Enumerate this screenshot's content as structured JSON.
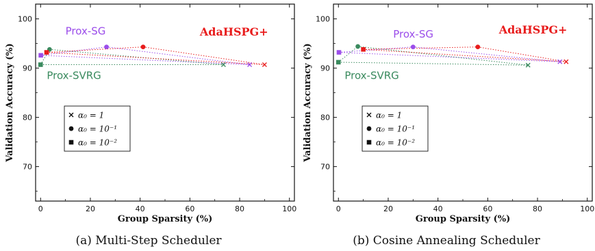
{
  "colors": {
    "Prox-SG": "#9b4dea",
    "Prox-SVRG": "#3a8a5e",
    "AdaHSPG+": "#e81c1c",
    "text": "#111111"
  },
  "chart_data": [
    {
      "type": "scatter",
      "caption": "(a) Multi-Step Scheduler",
      "xlabel": "Group Sparsity (%)",
      "ylabel": "Validation Accuracy (%)",
      "xlim": [
        -2,
        102
      ],
      "ylim": [
        63,
        103
      ],
      "xticks": [
        0,
        20,
        40,
        60,
        80,
        100
      ],
      "yticks": [
        70,
        80,
        90,
        100
      ],
      "grid": false,
      "legend_position": "lower-left",
      "legend": [
        {
          "marker": "x",
          "label": "α₀ = 1"
        },
        {
          "marker": "circle",
          "label": "α₀ = 10⁻¹"
        },
        {
          "marker": "square",
          "label": "α₀ = 10⁻²"
        }
      ],
      "series": [
        {
          "name": "Prox-SG",
          "label_text": "Prox-SG",
          "label_anchor": [
            10,
            96.8
          ],
          "label_weight": "normal",
          "label_font": "sans",
          "points": [
            {
              "x": 0.1,
              "y": 92.6,
              "m": "square"
            },
            {
              "x": 26.5,
              "y": 94.3,
              "m": "circle"
            },
            {
              "x": 84.0,
              "y": 90.7,
              "m": "x"
            }
          ]
        },
        {
          "name": "Prox-SVRG",
          "label_text": "Prox-SVRG",
          "label_anchor": [
            2.5,
            87.8
          ],
          "label_weight": "normal",
          "label_font": "sans",
          "points": [
            {
              "x": 0.0,
              "y": 90.7,
              "m": "square"
            },
            {
              "x": 3.6,
              "y": 93.8,
              "m": "circle"
            },
            {
              "x": 73.5,
              "y": 90.7,
              "m": "x"
            }
          ]
        },
        {
          "name": "AdaHSPG+",
          "label_text": "AdaHSPG+",
          "label_anchor": [
            64,
            96.6
          ],
          "label_weight": "bold",
          "label_font": "serif",
          "points": [
            {
              "x": 2.4,
              "y": 93.2,
              "m": "square"
            },
            {
              "x": 41.2,
              "y": 94.3,
              "m": "circle"
            },
            {
              "x": 90.0,
              "y": 90.7,
              "m": "x"
            }
          ]
        }
      ]
    },
    {
      "type": "scatter",
      "caption": "(b) Cosine Annealing Scheduler",
      "xlabel": "Group Sparsity (%)",
      "ylabel": "Validation Accuracy (%)",
      "xlim": [
        -2,
        102
      ],
      "ylim": [
        63,
        103
      ],
      "xticks": [
        0,
        20,
        40,
        60,
        80,
        100
      ],
      "yticks": [
        70,
        80,
        90,
        100
      ],
      "grid": false,
      "legend_position": "lower-left",
      "legend": [
        {
          "marker": "x",
          "label": "α₀ = 1"
        },
        {
          "marker": "circle",
          "label": "α₀ = 10⁻¹"
        },
        {
          "marker": "square",
          "label": "α₀ = 10⁻²"
        }
      ],
      "series": [
        {
          "name": "Prox-SG",
          "label_text": "Prox-SG",
          "label_anchor": [
            22,
            96.2
          ],
          "label_weight": "normal",
          "label_font": "sans",
          "points": [
            {
              "x": 0.2,
              "y": 93.2,
              "m": "square"
            },
            {
              "x": 30.0,
              "y": 94.3,
              "m": "circle"
            },
            {
              "x": 89.0,
              "y": 91.3,
              "m": "x"
            }
          ]
        },
        {
          "name": "Prox-SVRG",
          "label_text": "Prox-SVRG",
          "label_anchor": [
            2.5,
            87.8
          ],
          "label_weight": "normal",
          "label_font": "sans",
          "points": [
            {
              "x": 0.0,
              "y": 91.2,
              "m": "square"
            },
            {
              "x": 7.8,
              "y": 94.4,
              "m": "circle"
            },
            {
              "x": 76.2,
              "y": 90.6,
              "m": "x"
            }
          ]
        },
        {
          "name": "AdaHSPG+",
          "label_text": "AdaHSPG+",
          "label_anchor": [
            64.5,
            97.0
          ],
          "label_weight": "bold",
          "label_font": "serif",
          "points": [
            {
              "x": 10.0,
              "y": 93.8,
              "m": "square"
            },
            {
              "x": 56.0,
              "y": 94.3,
              "m": "circle"
            },
            {
              "x": 91.5,
              "y": 91.3,
              "m": "x"
            }
          ]
        }
      ]
    }
  ]
}
